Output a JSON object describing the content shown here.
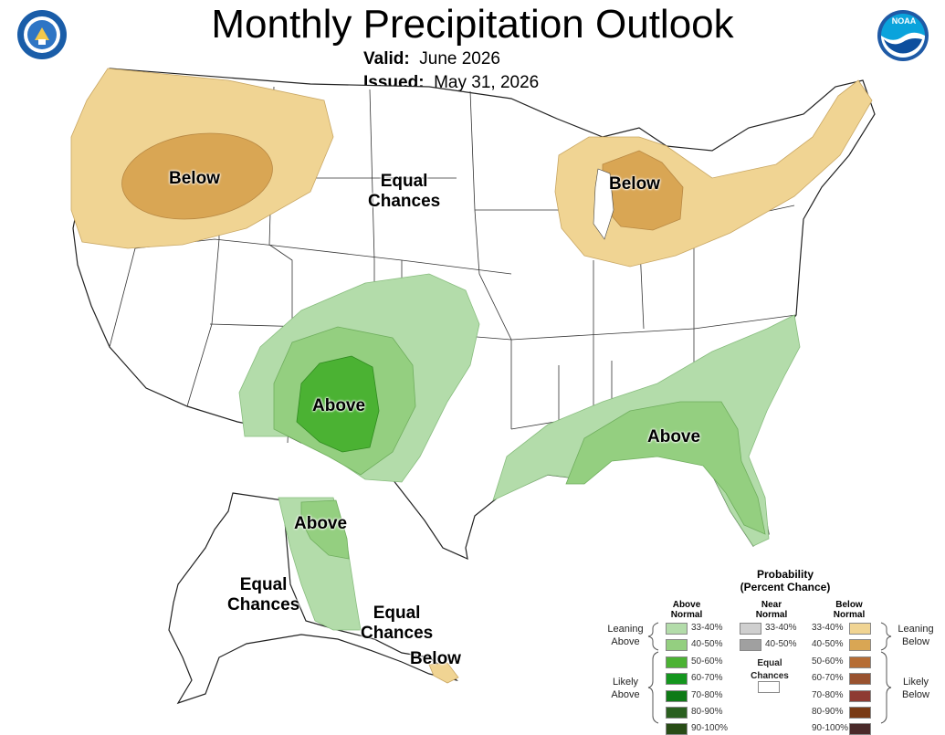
{
  "header": {
    "title": "Monthly Precipitation Outlook",
    "valid_label": "Valid:",
    "valid_value": "June 2026",
    "issued_label": "Issued:",
    "issued_value": "May 31, 2026"
  },
  "logos": {
    "left_seal_icon": "department-of-commerce-seal",
    "right_logo_icon": "noaa-logo"
  },
  "map_labels": {
    "northwest": "Below",
    "plains": [
      "Equal",
      "Chances"
    ],
    "great_lakes": "Below",
    "southwest": "Above",
    "southeast": "Above",
    "alaska_north": "Above",
    "alaska_west": [
      "Equal",
      "Chances"
    ],
    "alaska_south": [
      "Equal",
      "Chances"
    ],
    "alaska_panhandle": "Below"
  },
  "legend": {
    "title": "Probability",
    "subtitle": "(Percent Chance)",
    "above_head": [
      "Above",
      "Normal"
    ],
    "near_head": [
      "Near",
      "Normal"
    ],
    "below_head": [
      "Below",
      "Normal"
    ],
    "leaning_above": [
      "Leaning",
      "Above"
    ],
    "leaning_below": [
      "Leaning",
      "Below"
    ],
    "likely_above": [
      "Likely",
      "Above"
    ],
    "likely_below": [
      "Likely",
      "Below"
    ],
    "equal_chances": [
      "Equal",
      "Chances"
    ],
    "above": [
      {
        "label": "33-40%",
        "color": "#b3dcaa"
      },
      {
        "label": "40-50%",
        "color": "#94cf80"
      },
      {
        "label": "50-60%",
        "color": "#4bb233"
      },
      {
        "label": "60-70%",
        "color": "#14961e"
      },
      {
        "label": "70-80%",
        "color": "#0e7a16"
      },
      {
        "label": "80-90%",
        "color": "#2a5f1f"
      },
      {
        "label": "90-100%",
        "color": "#284c16"
      }
    ],
    "near": [
      {
        "label": "33-40%",
        "color": "#cfcfcf"
      },
      {
        "label": "40-50%",
        "color": "#a0a0a0"
      }
    ],
    "below": [
      {
        "label": "33-40%",
        "color": "#f0d493"
      },
      {
        "label": "40-50%",
        "color": "#d9a654"
      },
      {
        "label": "50-60%",
        "color": "#b66d35"
      },
      {
        "label": "60-70%",
        "color": "#99522f"
      },
      {
        "label": "70-80%",
        "color": "#8e3b32"
      },
      {
        "label": "80-90%",
        "color": "#7a3a14"
      },
      {
        "label": "90-100%",
        "color": "#4a2a2a"
      }
    ]
  }
}
